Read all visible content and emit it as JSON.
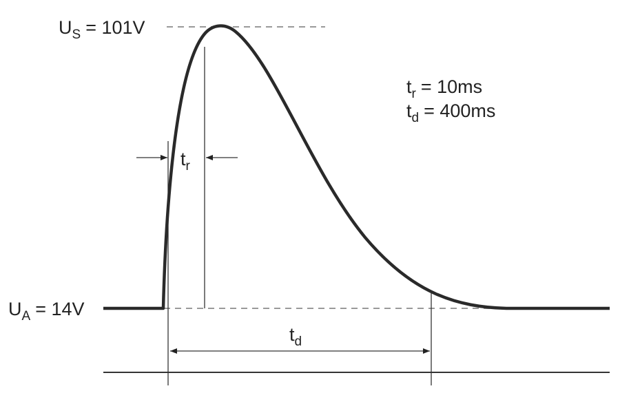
{
  "labels": {
    "peak_voltage": {
      "symbol": "U",
      "subscript": "S",
      "value": "= 101V"
    },
    "base_voltage": {
      "symbol": "U",
      "subscript": "A",
      "value": "= 14V"
    },
    "rise_time_marker": {
      "symbol": "t",
      "subscript": "r"
    },
    "duration_marker": {
      "symbol": "t",
      "subscript": "d"
    },
    "rise_time_spec": {
      "symbol": "t",
      "subscript": "r",
      "value": "= 10ms"
    },
    "duration_spec": {
      "symbol": "t",
      "subscript": "d",
      "value": "= 400ms"
    }
  }
}
